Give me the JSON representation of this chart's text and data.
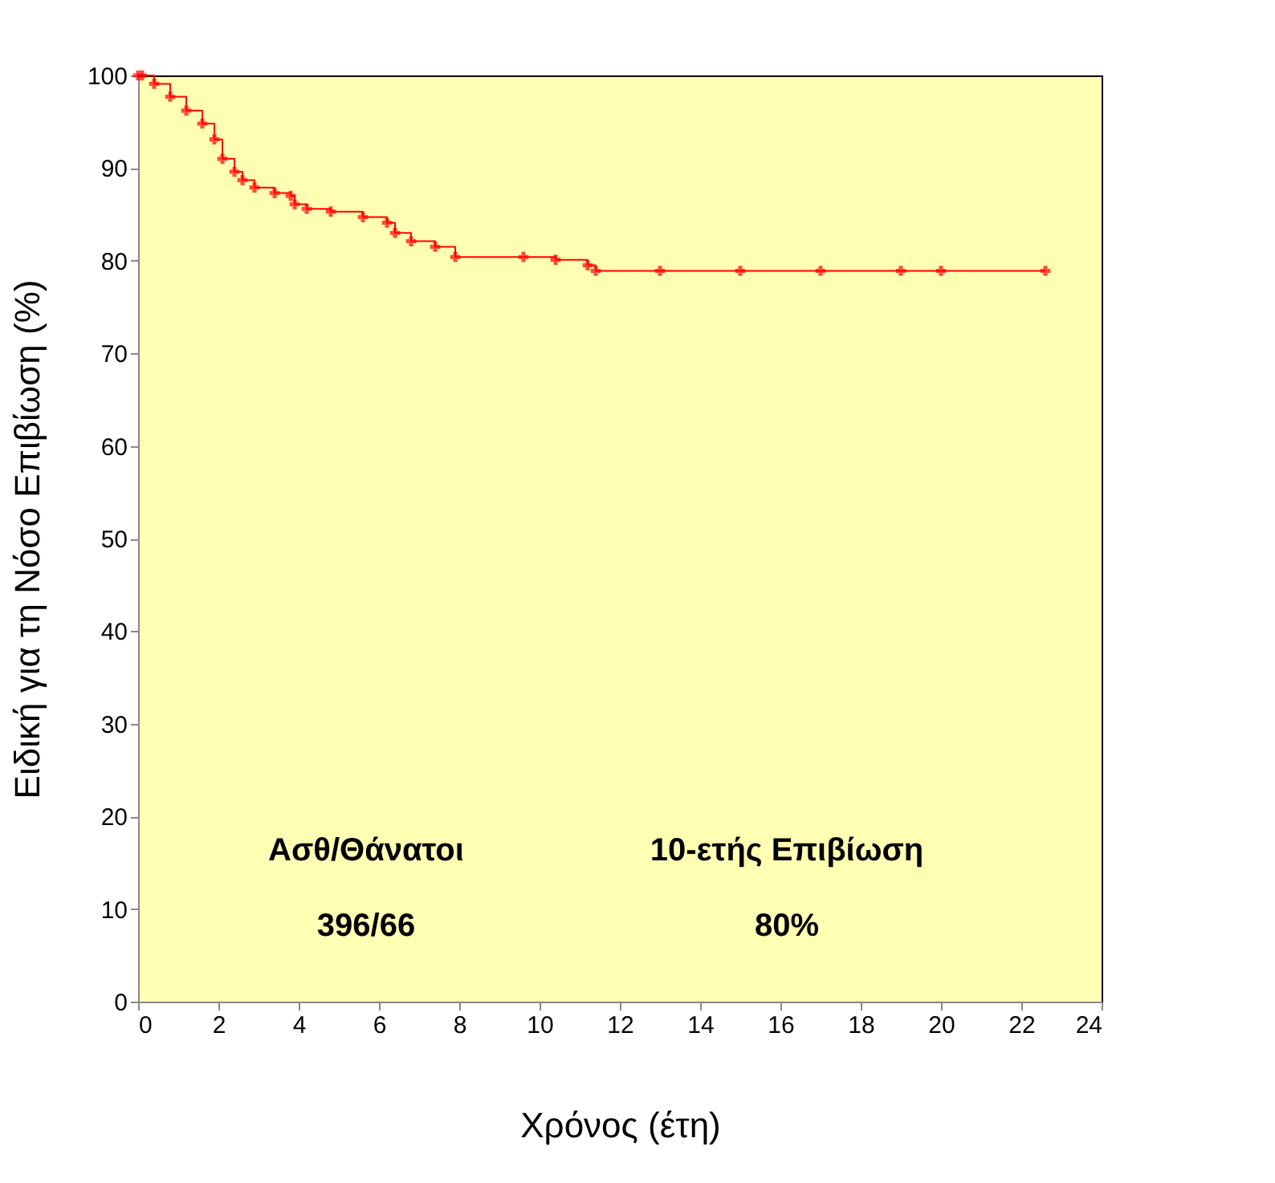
{
  "chart_data": {
    "type": "step",
    "xlabel": "Χρόνος (έτη)",
    "ylabel": "Ειδική για τη Νόσο Επιβίωση (%)",
    "x": [
      0,
      0.1,
      0.4,
      0.8,
      1.2,
      1.6,
      1.9,
      2.1,
      2.4,
      2.6,
      2.9,
      3.4,
      3.8,
      3.9,
      4.2,
      4.8,
      5.6,
      6.2,
      6.4,
      6.8,
      7.4,
      7.9,
      9.6,
      10.4,
      11.2,
      11.4,
      13,
      15,
      17,
      19,
      20,
      22.6
    ],
    "series": [
      {
        "color": "#ff0000",
        "values": [
          100,
          100,
          99.1,
          97.7,
          96.2,
          94.8,
          93.1,
          91,
          89.6,
          88.7,
          87.9,
          87.3,
          87,
          86.1,
          85.6,
          85.3,
          84.7,
          84.1,
          83,
          82.1,
          81.5,
          80.4,
          80.4,
          80.1,
          79.5,
          78.9,
          78.9,
          78.9,
          78.9,
          78.9,
          78.9,
          78.9
        ]
      }
    ],
    "marker": "cross",
    "line_style": "solid",
    "xlim": [
      0,
      24
    ],
    "xticks": [
      0,
      2,
      4,
      6,
      8,
      10,
      12,
      14,
      16,
      18,
      20,
      22,
      24
    ],
    "ylim": [
      0,
      100
    ],
    "yticks": [
      0,
      10,
      20,
      30,
      40,
      50,
      60,
      70,
      80,
      90,
      100
    ],
    "grid": false,
    "annotations": [
      "Ασθ/Θάνατοι",
      "396/66",
      "10-ετής Επιβίωση",
      "80%"
    ]
  }
}
